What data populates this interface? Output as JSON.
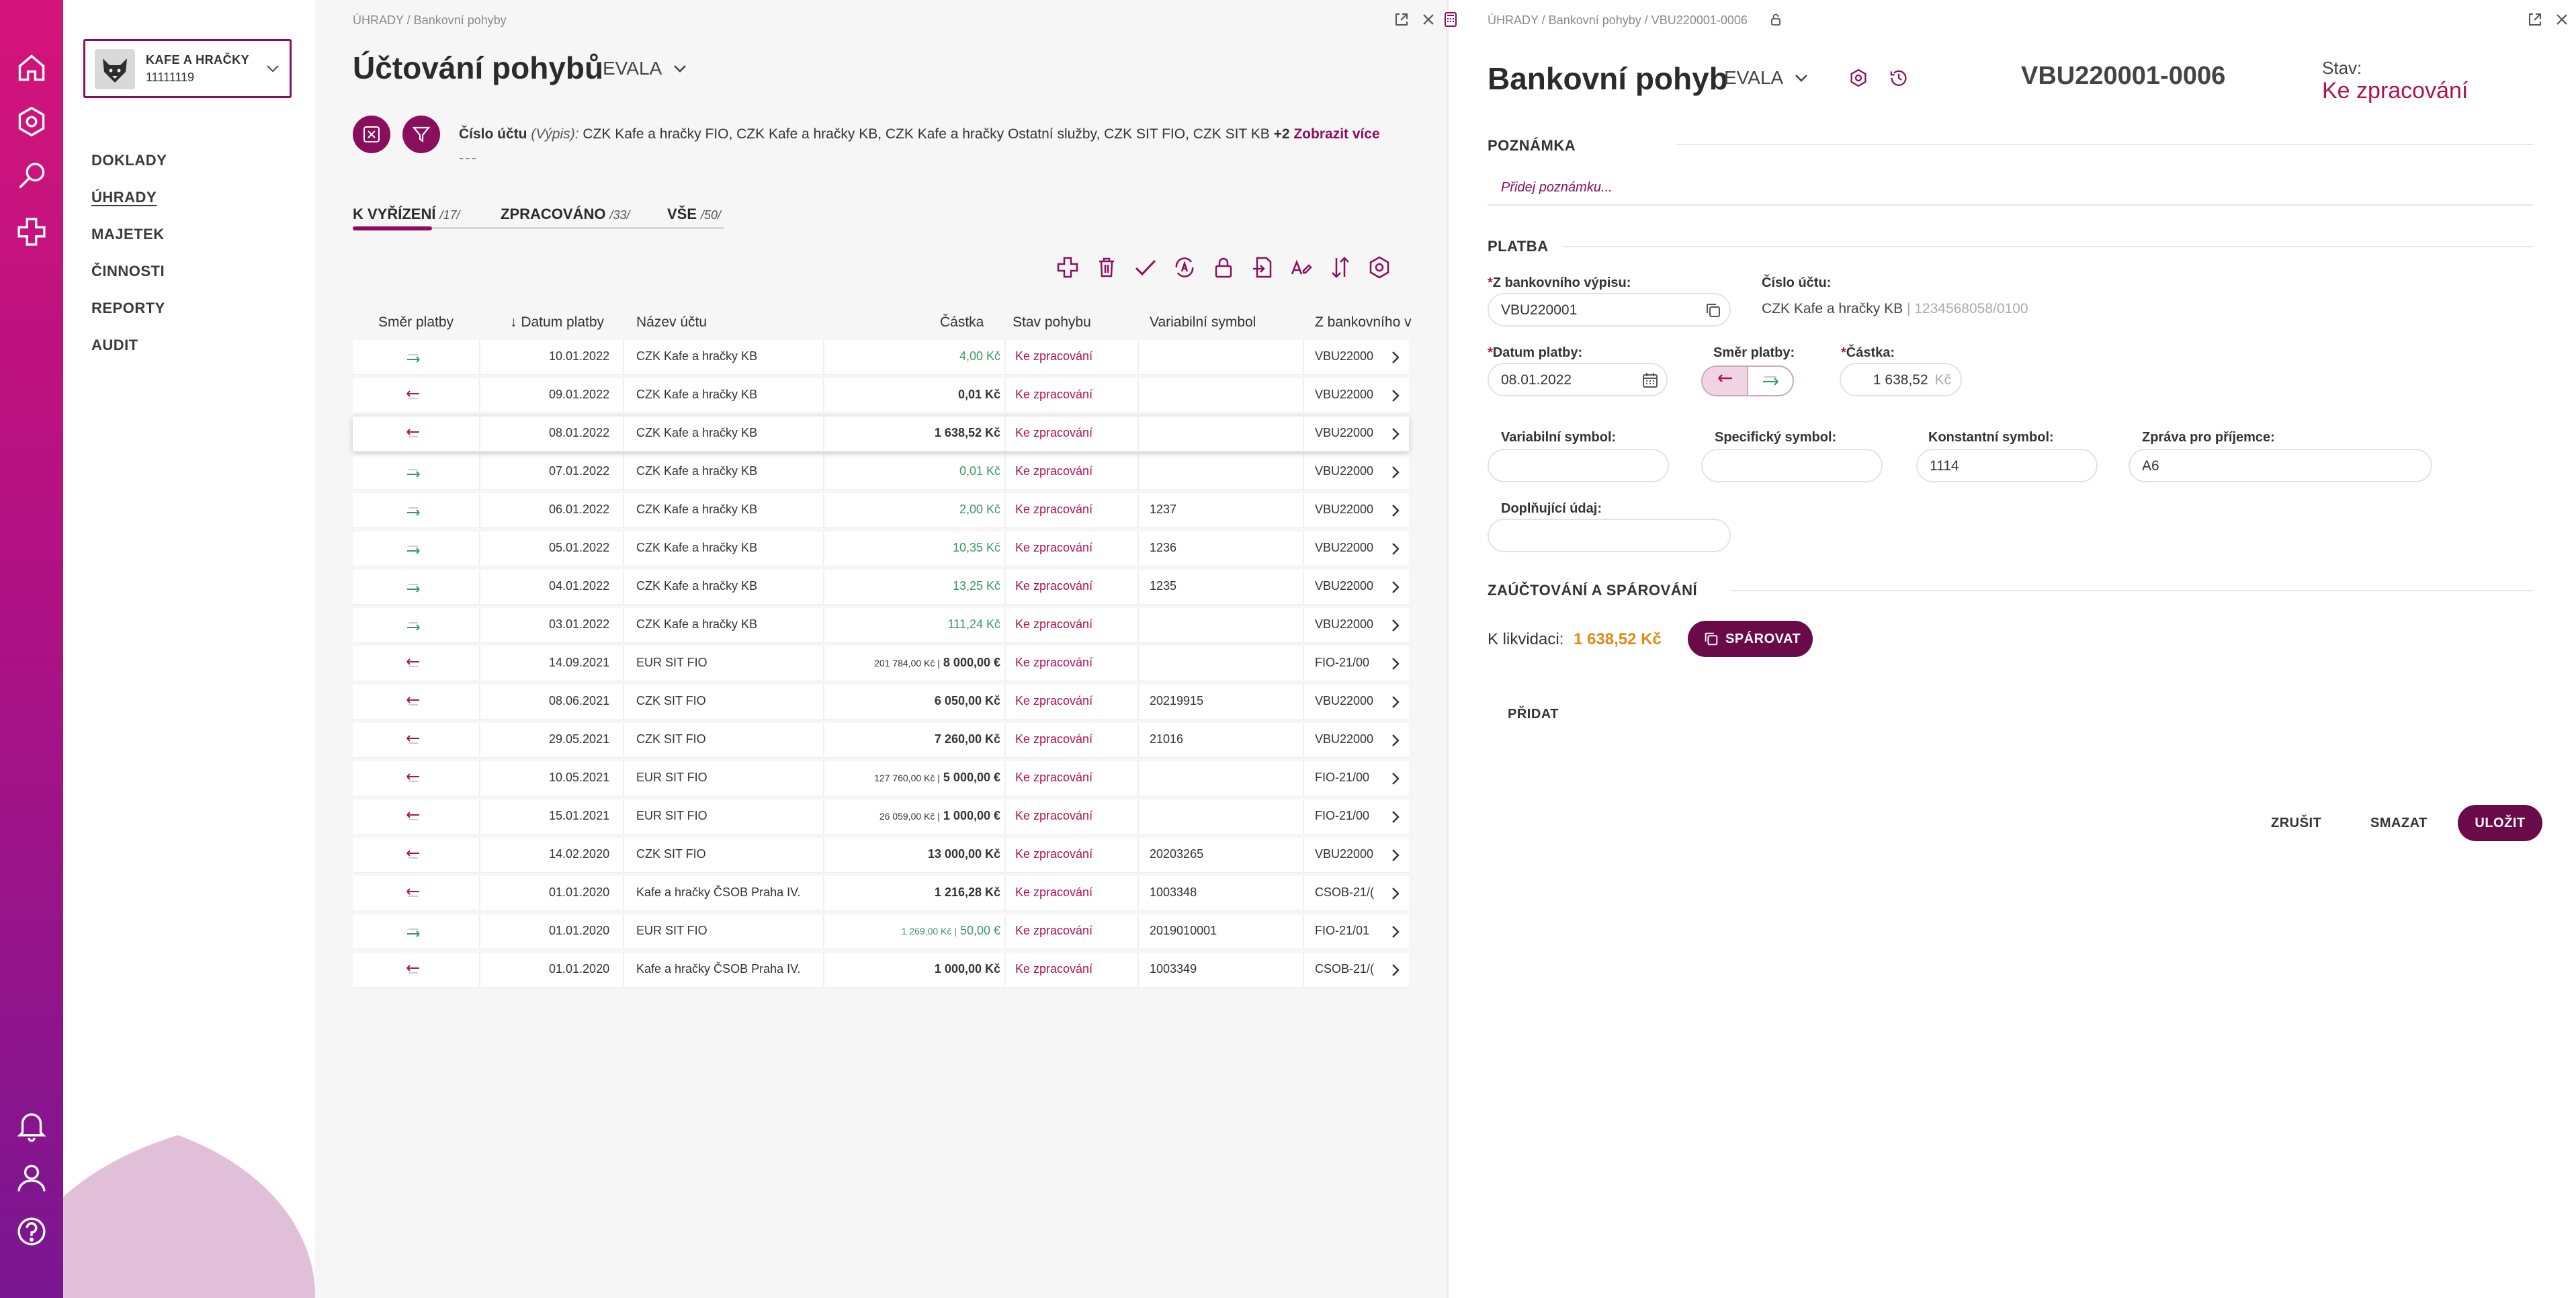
{
  "sidebar": {
    "company_name": "KAFE A HRAČKY",
    "company_id": "11111119",
    "items": [
      {
        "label": "DOKLADY",
        "active": false
      },
      {
        "label": "ÚHRADY",
        "active": true
      },
      {
        "label": "MAJETEK",
        "active": false
      },
      {
        "label": "ČINNOSTI",
        "active": false
      },
      {
        "label": "REPORTY",
        "active": false
      },
      {
        "label": "AUDIT",
        "active": false
      }
    ]
  },
  "rail_icons": [
    "home-icon",
    "settings-icon",
    "search-icon",
    "plus-icon",
    "bell-icon",
    "user-icon",
    "help-icon"
  ],
  "left": {
    "breadcrumb": "ÚHRADY / Bankovní pohyby",
    "title": "Účtování pohybů",
    "tag": "EVALA",
    "filter": {
      "label": "Číslo účtu",
      "sub": "(Výpis):",
      "value": "CZK Kafe a hračky FIO, CZK Kafe a hračky KB, CZK Kafe a hračky Ostatní služby, CZK SIT FIO, CZK SIT KB",
      "extra": "+2",
      "more": "Zobrazit více",
      "dots": "---"
    },
    "tabs": [
      {
        "label": "K VYŘÍZENÍ",
        "count": "/17/"
      },
      {
        "label": "ZPRACOVÁNO",
        "count": "/33/"
      },
      {
        "label": "VŠE",
        "count": "/50/"
      }
    ],
    "columns": {
      "direction": "Směr platby",
      "date": "↓ Datum platby",
      "account": "Název účtu",
      "amount": "Částka",
      "status": "Stav pohybu",
      "vs": "Variabilní symbol",
      "statement": "Z bankovního v"
    },
    "rows": [
      {
        "dir": "in",
        "date": "10.01.2022",
        "account": "CZK Kafe a hračky KB",
        "amount": "4,00 Kč",
        "amount_small": "",
        "green": true,
        "status": "Ke zpracování",
        "vs": "",
        "statement": "VBU22000"
      },
      {
        "dir": "out",
        "date": "09.01.2022",
        "account": "CZK Kafe a hračky KB",
        "amount": "0,01 Kč",
        "amount_small": "",
        "green": false,
        "status": "Ke zpracování",
        "vs": "",
        "statement": "VBU22000"
      },
      {
        "dir": "out",
        "date": "08.01.2022",
        "account": "CZK Kafe a hračky KB",
        "amount": "1 638,52 Kč",
        "amount_small": "",
        "green": false,
        "status": "Ke zpracování",
        "vs": "",
        "statement": "VBU22000",
        "highlight": true
      },
      {
        "dir": "in",
        "date": "07.01.2022",
        "account": "CZK Kafe a hračky KB",
        "amount": "0,01 Kč",
        "amount_small": "",
        "green": true,
        "status": "Ke zpracování",
        "vs": "",
        "statement": "VBU22000"
      },
      {
        "dir": "in",
        "date": "06.01.2022",
        "account": "CZK Kafe a hračky KB",
        "amount": "2,00 Kč",
        "amount_small": "",
        "green": true,
        "status": "Ke zpracování",
        "vs": "1237",
        "statement": "VBU22000"
      },
      {
        "dir": "in",
        "date": "05.01.2022",
        "account": "CZK Kafe a hračky KB",
        "amount": "10,35 Kč",
        "amount_small": "",
        "green": true,
        "status": "Ke zpracování",
        "vs": "1236",
        "statement": "VBU22000"
      },
      {
        "dir": "in",
        "date": "04.01.2022",
        "account": "CZK Kafe a hračky KB",
        "amount": "13,25 Kč",
        "amount_small": "",
        "green": true,
        "status": "Ke zpracování",
        "vs": "1235",
        "statement": "VBU22000"
      },
      {
        "dir": "in",
        "date": "03.01.2022",
        "account": "CZK Kafe a hračky KB",
        "amount": "111,24 Kč",
        "amount_small": "",
        "green": true,
        "status": "Ke zpracování",
        "vs": "",
        "statement": "VBU22000"
      },
      {
        "dir": "out",
        "date": "14.09.2021",
        "account": "EUR SIT FIO",
        "amount": "8 000,00 €",
        "amount_small": "201 784,00 Kč |",
        "green": false,
        "status": "Ke zpracování",
        "vs": "",
        "statement": "FIO-21/00"
      },
      {
        "dir": "out",
        "date": "08.06.2021",
        "account": "CZK SIT FIO",
        "amount": "6 050,00 Kč",
        "amount_small": "",
        "green": false,
        "status": "Ke zpracování",
        "vs": "20219915",
        "statement": "VBU22000"
      },
      {
        "dir": "out",
        "date": "29.05.2021",
        "account": "CZK SIT FIO",
        "amount": "7 260,00 Kč",
        "amount_small": "",
        "green": false,
        "status": "Ke zpracování",
        "vs": "21016",
        "statement": "VBU22000"
      },
      {
        "dir": "out",
        "date": "10.05.2021",
        "account": "EUR SIT FIO",
        "amount": "5 000,00 €",
        "amount_small": "127 760,00 Kč |",
        "green": false,
        "status": "Ke zpracování",
        "vs": "",
        "statement": "FIO-21/00"
      },
      {
        "dir": "out",
        "date": "15.01.2021",
        "account": "EUR SIT FIO",
        "amount": "1 000,00 €",
        "amount_small": "26 059,00 Kč |",
        "green": false,
        "status": "Ke zpracování",
        "vs": "",
        "statement": "FIO-21/00"
      },
      {
        "dir": "out",
        "date": "14.02.2020",
        "account": "CZK SIT FIO",
        "amount": "13 000,00 Kč",
        "amount_small": "",
        "green": false,
        "status": "Ke zpracování",
        "vs": "20203265",
        "statement": "VBU22000"
      },
      {
        "dir": "out",
        "date": "01.01.2020",
        "account": "Kafe a hračky ČSOB Praha IV.",
        "amount": "1 216,28 Kč",
        "amount_small": "",
        "green": false,
        "status": "Ke zpracování",
        "vs": "1003348",
        "statement": "CSOB-21/("
      },
      {
        "dir": "in",
        "date": "01.01.2020",
        "account": "EUR SIT FIO",
        "amount": "50,00 €",
        "amount_small": "1 269,00 Kč |",
        "green": true,
        "status": "Ke zpracování",
        "vs": "2019010001",
        "statement": "FIO-21/01"
      },
      {
        "dir": "out",
        "date": "01.01.2020",
        "account": "Kafe a hračky ČSOB Praha IV.",
        "amount": "1 000,00 Kč",
        "amount_small": "",
        "green": false,
        "status": "Ke zpracování",
        "vs": "1003349",
        "statement": "CSOB-21/("
      }
    ]
  },
  "right": {
    "breadcrumb": "ÚHRADY / Bankovní pohyby / VBU220001-0006",
    "title": "Bankovní pohyb",
    "tag": "EVALA",
    "doc_no": "VBU220001-0006",
    "state_label": "Stav:",
    "state_value": "Ke zpracování",
    "note_section": "POZNÁMKA",
    "note_placeholder": "Přidej poznámku...",
    "payment_section": "PLATBA",
    "statement_label": "Z bankovního výpisu:",
    "statement_value": "VBU220001",
    "account_label": "Číslo účtu:",
    "account_name": "CZK Kafe a hračky KB",
    "account_number": "| 1234568058/0100",
    "date_label": "Datum platby:",
    "date_value": "08.01.2022",
    "direction_label": "Směr platby:",
    "amount_label": "Částka:",
    "amount_value": "1 638,52",
    "amount_currency": "Kč",
    "vs_label": "Variabilní symbol:",
    "vs_value": "",
    "ss_label": "Specifický symbol:",
    "ss_value": "",
    "ks_label": "Konstantní symbol:",
    "ks_value": "1114",
    "msg_label": "Zpráva pro příjemce:",
    "msg_value": "A6",
    "extra_label": "Doplňující údaj:",
    "extra_value": "",
    "booking_section": "ZAÚČTOVÁNÍ A SPÁROVÁNÍ",
    "liquidate_label": "K likvidaci:",
    "liquidate_value": "1 638,52 Kč",
    "pair_button": "SPÁROVAT",
    "add_button": "PŘIDAT",
    "cancel_button": "ZRUŠIT",
    "delete_button": "SMAZAT",
    "save_button": "ULOŽIT"
  },
  "colors": {
    "brand": "#8a0e5e",
    "brand_dark": "#6b0a48",
    "status": "#b0124f",
    "green": "#3a9a62",
    "orange": "#e08a1a"
  }
}
